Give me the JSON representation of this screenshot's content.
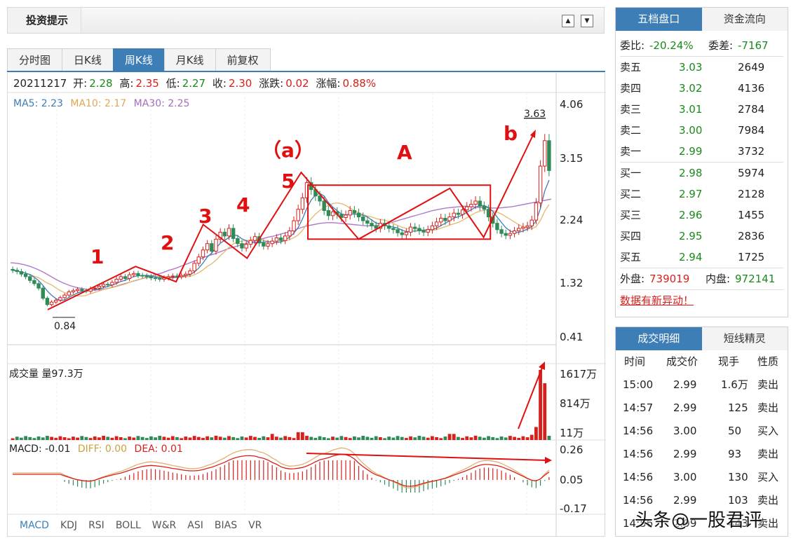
{
  "topbar": {
    "title": "投资提示",
    "up_arrow": "▲",
    "down_arrow": "▼"
  },
  "tabs": [
    {
      "label": "分时图",
      "active": false
    },
    {
      "label": "日K线",
      "active": false
    },
    {
      "label": "周K线",
      "active": true
    },
    {
      "label": "月K线",
      "active": false
    },
    {
      "label": "前复权",
      "active": false
    }
  ],
  "quote": {
    "date": "20211217",
    "open_label": "开:",
    "open": "2.28",
    "high_label": "高:",
    "high": "2.35",
    "low_label": "低:",
    "low": "2.27",
    "close_label": "收:",
    "close": "2.30",
    "change_label": "涨跌:",
    "change": "0.02",
    "pct_label": "涨幅:",
    "pct": "0.88%"
  },
  "ma": {
    "ma5": "MA5: 2.23",
    "ma10": "MA10: 2.17",
    "ma30": "MA30: 2.25"
  },
  "volume_label": "成交量 量97.3万",
  "macd_label": {
    "macd": "MACD: -0.01",
    "diff": "DIFF: 0.00",
    "dea": "DEA: 0.01"
  },
  "tech_tabs": [
    "MACD",
    "KDJ",
    "RSI",
    "BOLL",
    "W&R",
    "ASI",
    "BIAS",
    "VR"
  ],
  "colors": {
    "up": "#d7201c",
    "down": "#2e8b57",
    "accent": "#3d7eb7",
    "ma5": "#3d7eb7",
    "ma10": "#e8b66a",
    "ma30": "#b07ac8"
  },
  "chart_data": [
    {
      "type": "candlestick",
      "title": "",
      "y_ticks": [
        "4.06",
        "3.15",
        "2.24",
        "1.32",
        "0.41"
      ],
      "ylim": [
        0.41,
        4.06
      ],
      "annotations": {
        "low_mark": "0.84",
        "high_mark": "3.63",
        "wave_labels": [
          "1",
          "2",
          "3",
          "4",
          "5",
          "（a）",
          "A",
          "b"
        ]
      },
      "wave_path": [
        {
          "t": 11,
          "p": 0.84
        },
        {
          "t": 37,
          "p": 1.52
        },
        {
          "t": 49,
          "p": 1.28
        },
        {
          "t": 57,
          "p": 2.18
        },
        {
          "t": 70,
          "p": 1.65
        },
        {
          "t": 86,
          "p": 3.0
        },
        {
          "t": 103,
          "p": 1.95
        },
        {
          "t": 130,
          "p": 2.75
        },
        {
          "t": 140,
          "p": 1.98
        },
        {
          "t": 155,
          "p": 3.63
        }
      ],
      "box": {
        "t_start": 88,
        "t_end": 142,
        "p_top": 2.8,
        "p_bottom": 1.95
      },
      "closes": [
        1.46,
        1.44,
        1.4,
        1.36,
        1.3,
        1.25,
        1.18,
        1.02,
        0.92,
        0.96,
        0.99,
        1.03,
        1.07,
        1.12,
        1.14,
        1.16,
        1.14,
        1.13,
        1.17,
        1.18,
        1.21,
        1.24,
        1.23,
        1.27,
        1.32,
        1.36,
        1.33,
        1.39,
        1.41,
        1.38,
        1.37,
        1.36,
        1.34,
        1.33,
        1.32,
        1.34,
        1.36,
        1.37,
        1.36,
        1.38,
        1.4,
        1.45,
        1.57,
        1.67,
        1.78,
        1.88,
        1.76,
        1.95,
        2.06,
        2.0,
        2.12,
        1.96,
        1.88,
        1.81,
        1.87,
        1.93,
        1.99,
        1.89,
        1.84,
        1.88,
        1.92,
        1.97,
        1.93,
        2.0,
        2.08,
        2.24,
        2.42,
        2.6,
        2.84,
        2.73,
        2.63,
        2.55,
        2.4,
        2.32,
        2.38,
        2.34,
        2.29,
        2.33,
        2.4,
        2.36,
        2.3,
        2.24,
        2.2,
        2.16,
        2.12,
        2.2,
        2.16,
        2.12,
        2.1,
        2.05,
        2.02,
        2.06,
        2.14,
        2.12,
        2.08,
        2.06,
        2.1,
        2.16,
        2.22,
        2.28,
        2.24,
        2.3,
        2.36,
        2.34,
        2.41,
        2.46,
        2.5,
        2.55,
        2.47,
        2.42,
        2.3,
        2.2,
        2.1,
        2.04,
        2.01,
        2.04,
        2.08,
        2.12,
        2.14,
        2.16,
        2.25,
        2.52,
        3.1,
        3.5,
        3.03
      ],
      "ma30": [
        1.58,
        1.57,
        1.55,
        1.52,
        1.48,
        1.43,
        1.37,
        1.31,
        1.26,
        1.22,
        1.19,
        1.17,
        1.15,
        1.15,
        1.16,
        1.18,
        1.21,
        1.24,
        1.27,
        1.3,
        1.33,
        1.36,
        1.39,
        1.42,
        1.46,
        1.49,
        1.53,
        1.57,
        1.61,
        1.65,
        1.69,
        1.72,
        1.76,
        1.8,
        1.83,
        1.86,
        1.89,
        1.92,
        1.95,
        1.98,
        2.0,
        2.03,
        2.06,
        2.09,
        2.13,
        2.16,
        2.18,
        2.2,
        2.21,
        2.21,
        2.2,
        2.19,
        2.18,
        2.17,
        2.16,
        2.16,
        2.17,
        2.19,
        2.22,
        2.25,
        2.28,
        2.31,
        2.34,
        2.37,
        2.4,
        2.42,
        2.44,
        2.45,
        2.46,
        2.47,
        2.46,
        2.45,
        2.45,
        2.44,
        2.44,
        2.45,
        2.46,
        2.48,
        2.5,
        2.52,
        2.54,
        2.56,
        2.58
      ]
    },
    {
      "type": "bar",
      "title": "成交量",
      "y_ticks": [
        "1617万",
        "814万",
        "11万"
      ],
      "ylim": [
        0,
        1617
      ]
    },
    {
      "type": "bar",
      "title": "MACD",
      "y_ticks": [
        "0.26",
        "0.05",
        "-0.17"
      ],
      "ylim": [
        -0.17,
        0.26
      ]
    }
  ],
  "order_book": {
    "tabs": [
      {
        "label": "五档盘口",
        "active": true
      },
      {
        "label": "资金流向",
        "active": false
      }
    ],
    "weibi_label": "委比:",
    "weibi": "-20.24%",
    "weicha_label": "委差:",
    "weicha": "-7167",
    "sells": [
      {
        "label": "卖五",
        "price": "3.03",
        "vol": "2649"
      },
      {
        "label": "卖四",
        "price": "3.02",
        "vol": "4136"
      },
      {
        "label": "卖三",
        "price": "3.01",
        "vol": "2784"
      },
      {
        "label": "卖二",
        "price": "3.00",
        "vol": "7984"
      },
      {
        "label": "卖一",
        "price": "2.99",
        "vol": "3732"
      }
    ],
    "buys": [
      {
        "label": "买一",
        "price": "2.98",
        "vol": "5974"
      },
      {
        "label": "买二",
        "price": "2.97",
        "vol": "2128"
      },
      {
        "label": "买三",
        "price": "2.96",
        "vol": "1455"
      },
      {
        "label": "买四",
        "price": "2.95",
        "vol": "2836"
      },
      {
        "label": "买五",
        "price": "2.94",
        "vol": "1725"
      }
    ],
    "waipan_label": "外盘:",
    "waipan": "739019",
    "neipan_label": "内盘:",
    "neipan": "972141",
    "alert": "数据有新异动！"
  },
  "trades": {
    "tabs": [
      {
        "label": "成交明细",
        "active": true
      },
      {
        "label": "短线精灵",
        "active": false
      }
    ],
    "headers": [
      "时间",
      "成交价",
      "现手",
      "性质"
    ],
    "rows": [
      {
        "time": "15:00",
        "price": "2.99",
        "qty": "1.6万",
        "side": "卖出"
      },
      {
        "time": "14:57",
        "price": "2.99",
        "qty": "125",
        "side": "卖出"
      },
      {
        "time": "14:56",
        "price": "3.00",
        "qty": "50",
        "side": "买入"
      },
      {
        "time": "14:56",
        "price": "2.99",
        "qty": "93",
        "side": "卖出"
      },
      {
        "time": "14:56",
        "price": "3.00",
        "qty": "130",
        "side": "买入"
      },
      {
        "time": "14:56",
        "price": "2.99",
        "qty": "103",
        "side": "卖出"
      },
      {
        "time": "14:56",
        "price": "2.99",
        "qty": "443",
        "side": "卖出"
      }
    ]
  },
  "watermark": "头条@一股君评"
}
